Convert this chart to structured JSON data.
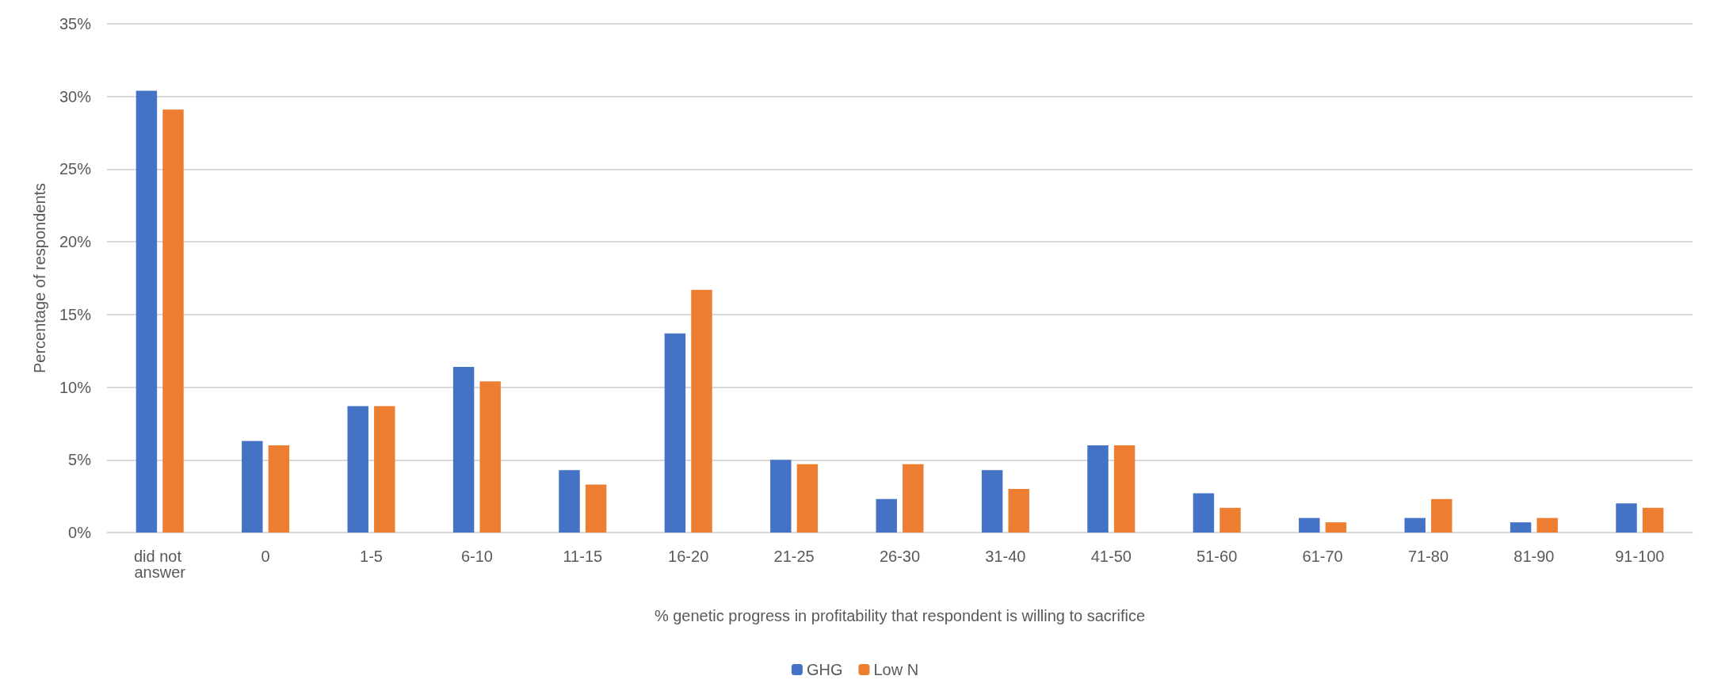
{
  "chart_data": {
    "type": "bar",
    "xlabel": "% genetic progress in profitability that respondent is willing to sacrifice",
    "ylabel": "Percentage of respondents",
    "categories": [
      "did not answer",
      "0",
      "1-5",
      "6-10",
      "11-15",
      "16-20",
      "21-25",
      "26-30",
      "31-40",
      "41-50",
      "51-60",
      "61-70",
      "71-80",
      "81-90",
      "91-100"
    ],
    "series": [
      {
        "name": "GHG",
        "color": "#4472c4",
        "values": [
          30.4,
          6.3,
          8.7,
          11.4,
          4.3,
          13.7,
          5.0,
          2.3,
          4.3,
          6.0,
          2.7,
          1.0,
          1.0,
          0.7,
          2.0
        ]
      },
      {
        "name": "Low N",
        "color": "#ed7d31",
        "values": [
          29.1,
          6.0,
          8.7,
          10.4,
          3.3,
          16.7,
          4.7,
          4.7,
          3.0,
          6.0,
          1.7,
          0.7,
          2.3,
          1.0,
          1.7
        ]
      }
    ],
    "ylim": [
      0,
      35
    ],
    "yticks": [
      {
        "value": 0,
        "label": "0%"
      },
      {
        "value": 5,
        "label": "5%"
      },
      {
        "value": 10,
        "label": "10%"
      },
      {
        "value": 15,
        "label": "15%"
      },
      {
        "value": 20,
        "label": "20%"
      },
      {
        "value": 25,
        "label": "25%"
      },
      {
        "value": 30,
        "label": "30%"
      },
      {
        "value": 35,
        "label": "35%"
      }
    ],
    "grid": "y",
    "legend": "bottom"
  }
}
